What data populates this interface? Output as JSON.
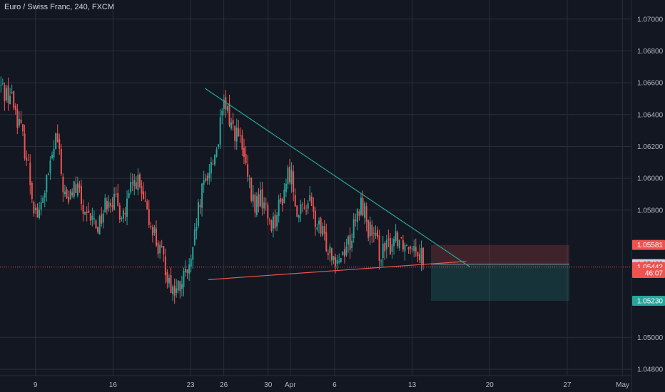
{
  "header": {
    "title": "Euro / Swiss Franc, 240, FXCM"
  },
  "colors": {
    "background": "#131722",
    "grid": "#2a2e39",
    "up": "#26a69a",
    "down": "#ef5350",
    "trendline": "#26a69a",
    "support_line": "#ef5350",
    "stop_zone": "#ef5350",
    "target_zone": "#26a69a",
    "price_line": "#ef5350"
  },
  "chart_data": {
    "type": "candlestick",
    "title": "Euro / Swiss Franc, 240, FXCM",
    "y_ticks": [
      "1.07000",
      "1.06800",
      "1.06600",
      "1.06400",
      "1.06200",
      "1.06000",
      "1.05800",
      "1.05000",
      "1.04800"
    ],
    "y_tick_values": [
      1.07,
      1.068,
      1.066,
      1.064,
      1.062,
      1.06,
      1.058,
      1.05,
      1.048
    ],
    "ylim": [
      1.0476,
      1.0712
    ],
    "x_ticks": [
      "9",
      "16",
      "23",
      "26",
      "30",
      "Apr",
      "6",
      "13",
      "20",
      "27",
      "May"
    ],
    "x_tick_positions": [
      9,
      16,
      23,
      26,
      30,
      32,
      36,
      43,
      50,
      57,
      62
    ],
    "xlim": [
      5.8,
      62.8
    ],
    "grid": true,
    "candles_close_path": [
      [
        5.8,
        1.0658
      ],
      [
        6.3,
        1.0654
      ],
      [
        6.8,
        1.0652
      ],
      [
        7.2,
        1.0643
      ],
      [
        7.7,
        1.063
      ],
      [
        8.3,
        1.061
      ],
      [
        8.8,
        1.0585
      ],
      [
        9.3,
        1.0575
      ],
      [
        9.8,
        1.0592
      ],
      [
        10.3,
        1.0605
      ],
      [
        10.9,
        1.0628
      ],
      [
        11.4,
        1.0598
      ],
      [
        11.9,
        1.0582
      ],
      [
        12.4,
        1.0595
      ],
      [
        13.0,
        1.059
      ],
      [
        13.5,
        1.0572
      ],
      [
        14.0,
        1.0575
      ],
      [
        14.6,
        1.057
      ],
      [
        15.1,
        1.0579
      ],
      [
        15.6,
        1.059
      ],
      [
        16.1,
        1.0585
      ],
      [
        16.6,
        1.058
      ],
      [
        17.1,
        1.0578
      ],
      [
        17.6,
        1.0592
      ],
      [
        18.1,
        1.06
      ],
      [
        18.6,
        1.0588
      ],
      [
        19.1,
        1.0575
      ],
      [
        19.6,
        1.057
      ],
      [
        20.1,
        1.0555
      ],
      [
        20.6,
        1.0548
      ],
      [
        21.1,
        1.0535
      ],
      [
        21.6,
        1.0528
      ],
      [
        22.1,
        1.0532
      ],
      [
        22.6,
        1.054
      ],
      [
        23.1,
        1.0545
      ],
      [
        23.6,
        1.0575
      ],
      [
        24.1,
        1.0592
      ],
      [
        24.6,
        1.0605
      ],
      [
        25.1,
        1.0612
      ],
      [
        25.5,
        1.0625
      ],
      [
        26.0,
        1.0645
      ],
      [
        26.4,
        1.064
      ],
      [
        26.8,
        1.0632
      ],
      [
        27.2,
        1.0628
      ],
      [
        27.6,
        1.062
      ],
      [
        28.0,
        1.0605
      ],
      [
        28.4,
        1.059
      ],
      [
        28.8,
        1.0582
      ],
      [
        29.2,
        1.0588
      ],
      [
        29.6,
        1.0585
      ],
      [
        30.0,
        1.0575
      ],
      [
        30.4,
        1.0572
      ],
      [
        30.8,
        1.0578
      ],
      [
        31.2,
        1.0585
      ],
      [
        31.6,
        1.0598
      ],
      [
        32.0,
        1.0605
      ],
      [
        32.4,
        1.059
      ],
      [
        32.8,
        1.0575
      ],
      [
        33.2,
        1.058
      ],
      [
        33.6,
        1.0588
      ],
      [
        34.0,
        1.0578
      ],
      [
        34.4,
        1.057
      ],
      [
        34.8,
        1.0565
      ],
      [
        35.2,
        1.056
      ],
      [
        35.6,
        1.0556
      ],
      [
        36.0,
        1.0552
      ],
      [
        36.5,
        1.055
      ],
      [
        37.0,
        1.0558
      ],
      [
        37.5,
        1.0562
      ],
      [
        38.0,
        1.0575
      ],
      [
        38.5,
        1.0585
      ],
      [
        39.0,
        1.057
      ],
      [
        39.5,
        1.0562
      ],
      [
        40.0,
        1.0555
      ],
      [
        40.5,
        1.0553
      ],
      [
        41.0,
        1.0558
      ],
      [
        41.5,
        1.0565
      ],
      [
        42.0,
        1.0562
      ],
      [
        42.5,
        1.0558
      ],
      [
        43.0,
        1.0562
      ],
      [
        43.5,
        1.0556
      ],
      [
        44.0,
        1.0551
      ]
    ],
    "annotations": {
      "descending_trendline": {
        "from": [
          24.3,
          1.06565
        ],
        "to": [
          48.2,
          1.05444
        ]
      },
      "support_line": {
        "from": [
          24.6,
          1.05363
        ],
        "to": [
          47.9,
          1.05478
        ]
      },
      "position": {
        "x_start": 44.7,
        "x_end": 57.2,
        "stop": 1.05581,
        "entry": 1.0546,
        "target": 1.0523
      }
    },
    "price_labels": [
      {
        "text": "1.05581",
        "value": 1.05581,
        "style": "down"
      },
      {
        "text": "1.05460",
        "value": 1.0546,
        "style": "neutral"
      },
      {
        "text": "1.05442",
        "value": 1.05442,
        "style": "down"
      },
      {
        "text": "46:07",
        "value": 1.05405,
        "style": "down"
      },
      {
        "text": "1.05230",
        "value": 1.0523,
        "style": "up"
      }
    ],
    "current_price": 1.05442
  }
}
